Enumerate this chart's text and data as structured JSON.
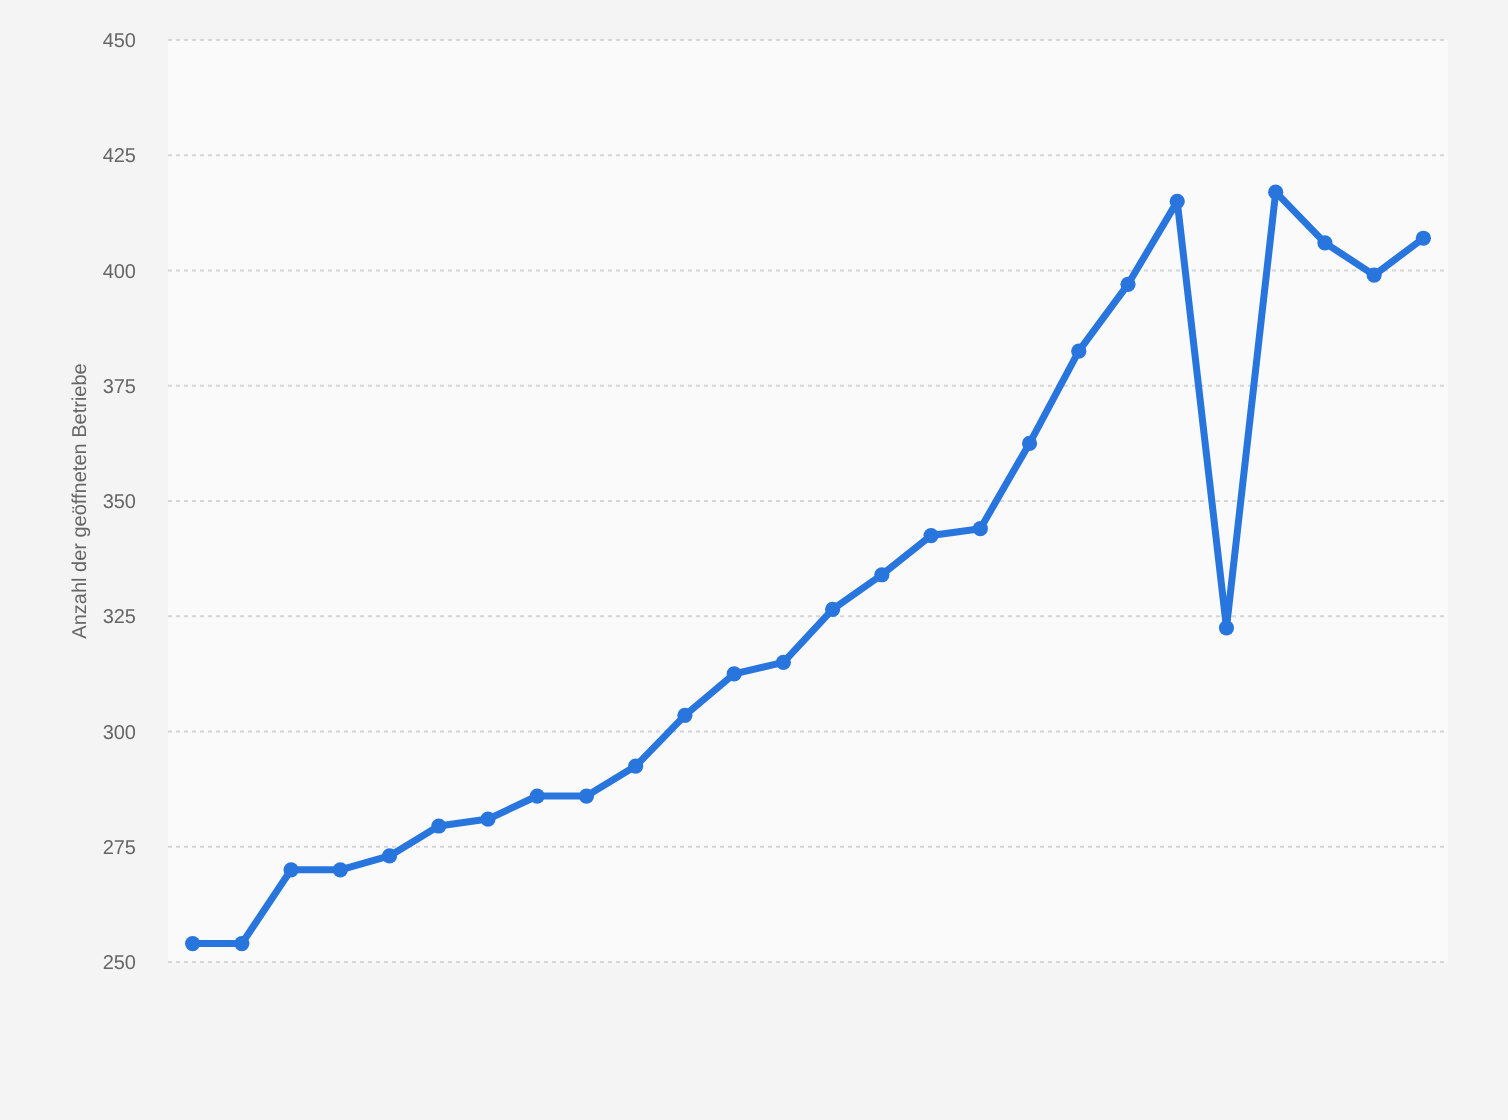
{
  "chart_data": {
    "type": "line",
    "ylabel": "Anzahl der geöffneten Betriebe",
    "categories": [
      null,
      null,
      null,
      null,
      null,
      null,
      null,
      null,
      null,
      null,
      null,
      null,
      null,
      null,
      null,
      null,
      null,
      null,
      null,
      null,
      null,
      null,
      null,
      null,
      null,
      null
    ],
    "series": [
      {
        "color": "#2876dd",
        "values": [
          254,
          254,
          270,
          270,
          273,
          279.5,
          281,
          286,
          286,
          292.5,
          303.5,
          312.5,
          315,
          326.5,
          334,
          342.5,
          344,
          362.5,
          382.5,
          397,
          415,
          322.5,
          417,
          406,
          399,
          407
        ]
      }
    ],
    "ylim": [
      250,
      450
    ],
    "yticks": [
      250,
      275,
      300,
      325,
      350,
      375,
      400,
      425,
      450
    ],
    "grid": "y",
    "marker": "circle",
    "line_style": "solid"
  }
}
